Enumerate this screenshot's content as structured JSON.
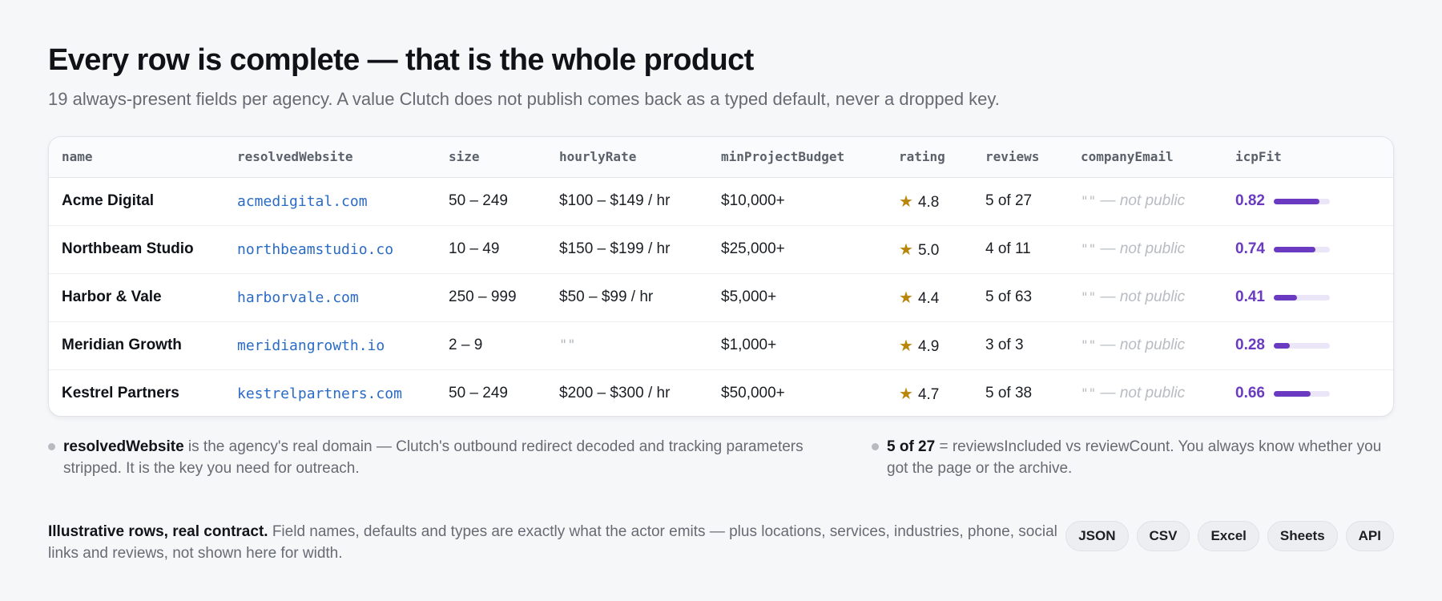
{
  "header": {
    "title": "Every row is complete — that is the whole product",
    "subtitle": "19 always-present fields per agency. A value Clutch does not publish comes back as a typed default, never a dropped key."
  },
  "table": {
    "columns": [
      "name",
      "resolvedWebsite",
      "size",
      "hourlyRate",
      "minProjectBudget",
      "rating",
      "reviews",
      "companyEmail",
      "icpFit"
    ],
    "rows": [
      {
        "name": "Acme Digital",
        "resolvedWebsite": "acmedigital.com",
        "size": "50 – 249",
        "hourlyRate": "$100 – $149 / hr",
        "minProjectBudget": "$10,000+",
        "rating": "4.8",
        "reviews": "5 of 27",
        "emailQuote": "\"\"",
        "emailNote": "— not public",
        "icpFit": "0.82",
        "icpFitValue": 0.82
      },
      {
        "name": "Northbeam Studio",
        "resolvedWebsite": "northbeamstudio.co",
        "size": "10 – 49",
        "hourlyRate": "$150 – $199 / hr",
        "minProjectBudget": "$25,000+",
        "rating": "5.0",
        "reviews": "4 of 11",
        "emailQuote": "\"\"",
        "emailNote": "— not public",
        "icpFit": "0.74",
        "icpFitValue": 0.74
      },
      {
        "name": "Harbor & Vale",
        "resolvedWebsite": "harborvale.com",
        "size": "250 – 999",
        "hourlyRate": "$50 – $99 / hr",
        "minProjectBudget": "$5,000+",
        "rating": "4.4",
        "reviews": "5 of 63",
        "emailQuote": "\"\"",
        "emailNote": "— not public",
        "icpFit": "0.41",
        "icpFitValue": 0.41
      },
      {
        "name": "Meridian Growth",
        "resolvedWebsite": "meridiangrowth.io",
        "size": "2 – 9",
        "hourlyRate": "\"\"",
        "minProjectBudget": "$1,000+",
        "rating": "4.9",
        "reviews": "3 of 3",
        "emailQuote": "\"\"",
        "emailNote": "— not public",
        "icpFit": "0.28",
        "icpFitValue": 0.28
      },
      {
        "name": "Kestrel Partners",
        "resolvedWebsite": "kestrelpartners.com",
        "size": "50 – 249",
        "hourlyRate": "$200 – $300 / hr",
        "minProjectBudget": "$50,000+",
        "rating": "4.7",
        "reviews": "5 of 38",
        "emailQuote": "\"\"",
        "emailNote": "— not public",
        "icpFit": "0.66",
        "icpFitValue": 0.66
      }
    ]
  },
  "notes": {
    "left": {
      "bold": "resolvedWebsite",
      "text": " is the agency's real domain — Clutch's outbound redirect decoded and tracking parameters stripped. It is the key you need for outreach."
    },
    "right": {
      "bold": "5 of 27",
      "text": " = reviewsIncluded vs reviewCount. You always know whether you got the page or the archive."
    }
  },
  "footer": {
    "bold": "Illustrative rows, real contract.",
    "text": " Field names, defaults and types are exactly what the actor emits — plus locations, services, industries, phone, social links and reviews, not shown here for width.",
    "formats": [
      "JSON",
      "CSV",
      "Excel",
      "Sheets",
      "API"
    ]
  },
  "colors": {
    "accent": "#6a3bc0",
    "link": "#2a6bc4",
    "star": "#b8860b"
  }
}
